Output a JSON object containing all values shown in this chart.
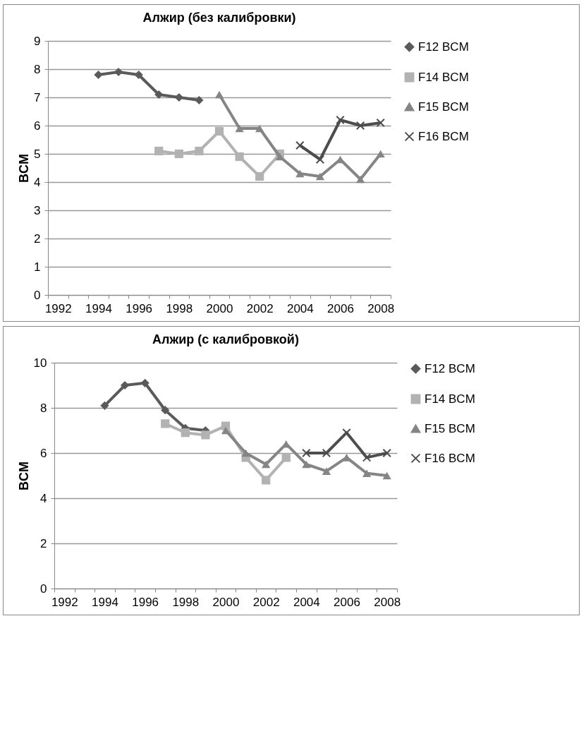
{
  "chart_data": [
    {
      "type": "line",
      "title": "Алжир (без калибровки)",
      "ylabel": "BCM",
      "categories": [
        "1992",
        null,
        "1994",
        null,
        "1996",
        null,
        "1998",
        null,
        "2000",
        null,
        "2002",
        null,
        "2004",
        null,
        "2006",
        null,
        "2008"
      ],
      "series": [
        {
          "name": "F12 BCM",
          "color": "#5a5a5a",
          "marker": "diamond",
          "values": [
            null,
            null,
            7.8,
            7.9,
            7.8,
            7.1,
            7.0,
            6.9,
            null,
            null,
            null,
            null,
            null,
            null,
            null,
            null,
            null
          ]
        },
        {
          "name": "F14 BCM",
          "color": "#b2b2b2",
          "marker": "square",
          "values": [
            null,
            null,
            null,
            null,
            null,
            5.1,
            5.0,
            5.1,
            5.8,
            4.9,
            4.2,
            5.0,
            null,
            null,
            null,
            null,
            null
          ]
        },
        {
          "name": "F15 BCM",
          "color": "#858585",
          "marker": "triangle",
          "values": [
            null,
            null,
            null,
            null,
            null,
            null,
            null,
            null,
            7.1,
            5.9,
            5.9,
            4.9,
            4.3,
            4.2,
            4.8,
            4.1,
            5.0
          ]
        },
        {
          "name": "F16 BCM",
          "color": "#4d4d4d",
          "marker": "cross",
          "values": [
            null,
            null,
            null,
            null,
            null,
            null,
            null,
            null,
            null,
            null,
            null,
            null,
            5.3,
            4.8,
            6.2,
            6.0,
            6.1
          ]
        }
      ],
      "ylim": [
        0,
        9
      ],
      "yticks": [
        0,
        1,
        2,
        3,
        4,
        5,
        6,
        7,
        8,
        9
      ],
      "grid": "y",
      "legend": "right"
    },
    {
      "type": "line",
      "title": "Алжир (с калибровкой)",
      "ylabel": "BCM",
      "categories": [
        "1992",
        null,
        "1994",
        null,
        "1996",
        null,
        "1998",
        null,
        "2000",
        null,
        "2002",
        null,
        "2004",
        null,
        "2006",
        null,
        "2008"
      ],
      "series": [
        {
          "name": "F12 BCM",
          "color": "#5a5a5a",
          "marker": "diamond",
          "values": [
            null,
            null,
            8.1,
            9.0,
            9.1,
            7.9,
            7.1,
            7.0,
            null,
            null,
            null,
            null,
            null,
            null,
            null,
            null,
            null
          ]
        },
        {
          "name": "F14 BCM",
          "color": "#b2b2b2",
          "marker": "square",
          "values": [
            null,
            null,
            null,
            null,
            null,
            7.3,
            6.9,
            6.8,
            7.2,
            5.8,
            4.8,
            5.8,
            null,
            null,
            null,
            null,
            null
          ]
        },
        {
          "name": "F15 BCM",
          "color": "#858585",
          "marker": "triangle",
          "values": [
            null,
            null,
            null,
            null,
            null,
            null,
            null,
            null,
            7.0,
            6.0,
            5.5,
            6.4,
            5.5,
            5.2,
            5.8,
            5.1,
            5.0
          ]
        },
        {
          "name": "F16 BCM",
          "color": "#4d4d4d",
          "marker": "cross",
          "values": [
            null,
            null,
            null,
            null,
            null,
            null,
            null,
            null,
            null,
            null,
            null,
            null,
            6.0,
            6.0,
            6.9,
            5.8,
            6.0
          ]
        }
      ],
      "ylim": [
        0,
        10
      ],
      "yticks": [
        0,
        2,
        4,
        6,
        8,
        10
      ],
      "grid": "y",
      "legend": "right"
    }
  ]
}
